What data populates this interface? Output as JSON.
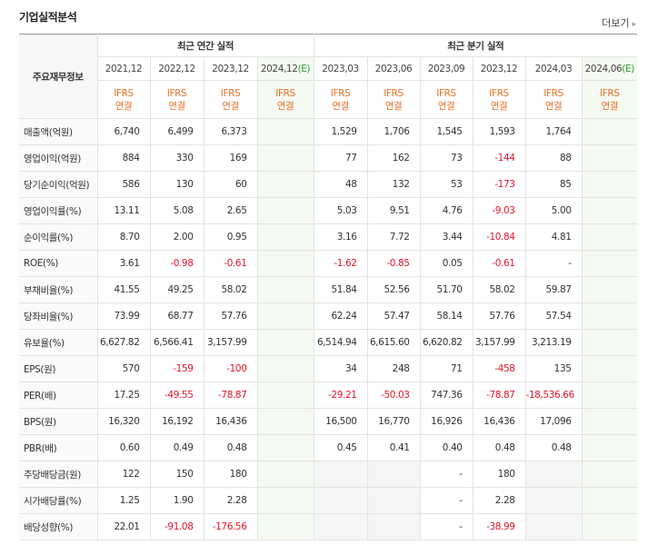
{
  "header": {
    "title": "기업실적분석",
    "more": "더보기"
  },
  "table": {
    "corner": "주요재무정보",
    "annual_title": "최근 연간 실적",
    "quarter_title": "최근 분기 실적",
    "periods": [
      {
        "date": "2021,12"
      },
      {
        "date": "2022,12"
      },
      {
        "date": "2023,12"
      },
      {
        "date": "2024,12",
        "suffix": "(E)"
      },
      {
        "date": "2023,03"
      },
      {
        "date": "2023,06"
      },
      {
        "date": "2023,09"
      },
      {
        "date": "2023,12"
      },
      {
        "date": "2024,03"
      },
      {
        "date": "2024,06",
        "suffix": "(E)"
      }
    ],
    "accounting": [
      [
        "IFRS",
        "연결"
      ],
      [
        "IFRS",
        "연결"
      ],
      [
        "IFRS",
        "연결"
      ],
      [
        "IFRS",
        "연결"
      ],
      [
        "IFRS",
        "연결"
      ],
      [
        "IFRS",
        "연결"
      ],
      [
        "IFRS",
        "연결"
      ],
      [
        "IFRS",
        "연결"
      ],
      [
        "IFRS",
        "연결"
      ],
      [
        "IFRS",
        "연결"
      ]
    ],
    "row_groups": [
      [
        {
          "label": "매출액(억원)",
          "values": [
            "6,740",
            "6,499",
            "6,373",
            null,
            "1,529",
            "1,706",
            "1,545",
            "1,593",
            "1,764",
            null
          ]
        },
        {
          "label": "영업이익(억원)",
          "values": [
            "884",
            "330",
            "169",
            null,
            "77",
            "162",
            "73",
            "-144",
            "88",
            null
          ]
        },
        {
          "label": "당기순이익(억원)",
          "values": [
            "586",
            "130",
            "60",
            null,
            "48",
            "132",
            "53",
            "-173",
            "85",
            null
          ]
        }
      ],
      [
        {
          "label": "영업이익률(%)",
          "values": [
            "13.11",
            "5.08",
            "2.65",
            null,
            "5.03",
            "9.51",
            "4.76",
            "-9.03",
            "5.00",
            null
          ]
        },
        {
          "label": "순이익률(%)",
          "values": [
            "8.70",
            "2.00",
            "0.95",
            null,
            "3.16",
            "7.72",
            "3.44",
            "-10.84",
            "4.81",
            null
          ]
        },
        {
          "label": "ROE(%)",
          "values": [
            "3.61",
            "-0.98",
            "-0.61",
            null,
            "-1.62",
            "-0.85",
            "0.05",
            "-0.61",
            "-",
            null
          ]
        }
      ],
      [
        {
          "label": "부채비율(%)",
          "values": [
            "41.55",
            "49.25",
            "58.02",
            null,
            "51.84",
            "52.56",
            "51.70",
            "58.02",
            "59.87",
            null
          ]
        },
        {
          "label": "당좌비율(%)",
          "values": [
            "73.99",
            "68.77",
            "57.76",
            null,
            "62.24",
            "57.47",
            "58.14",
            "57.76",
            "57.54",
            null
          ]
        },
        {
          "label": "유보율(%)",
          "values": [
            "6,627.82",
            "6,566.41",
            "3,157.99",
            null,
            "6,514.94",
            "6,615.60",
            "6,620.82",
            "3,157.99",
            "3,213.19",
            null
          ]
        }
      ],
      [
        {
          "label": "EPS(원)",
          "values": [
            "570",
            "-159",
            "-100",
            null,
            "34",
            "248",
            "71",
            "-458",
            "135",
            null
          ]
        },
        {
          "label": "PER(배)",
          "values": [
            "17.25",
            "-49.55",
            "-78.87",
            null,
            "-29.21",
            "-50.03",
            "747.36",
            "-78.87",
            "-18,536.66",
            null
          ]
        },
        {
          "label": "BPS(원)",
          "values": [
            "16,320",
            "16,192",
            "16,436",
            null,
            "16,500",
            "16,770",
            "16,926",
            "16,436",
            "17,096",
            null
          ]
        },
        {
          "label": "PBR(배)",
          "values": [
            "0.60",
            "0.49",
            "0.48",
            null,
            "0.45",
            "0.41",
            "0.40",
            "0.48",
            "0.48",
            null
          ]
        }
      ],
      [
        {
          "label": "주당배당금(원)",
          "values": [
            "122",
            "150",
            "180",
            null,
            null,
            null,
            "-",
            "180",
            null,
            null
          ]
        },
        {
          "label": "시가배당률(%)",
          "values": [
            "1.25",
            "1.90",
            "2.28",
            null,
            null,
            null,
            "-",
            "2.28",
            null,
            null
          ]
        },
        {
          "label": "배당성향(%)",
          "values": [
            "22.01",
            "-91.08",
            "-176.56",
            null,
            null,
            null,
            "-",
            "-38.99",
            null,
            null
          ]
        }
      ]
    ]
  }
}
